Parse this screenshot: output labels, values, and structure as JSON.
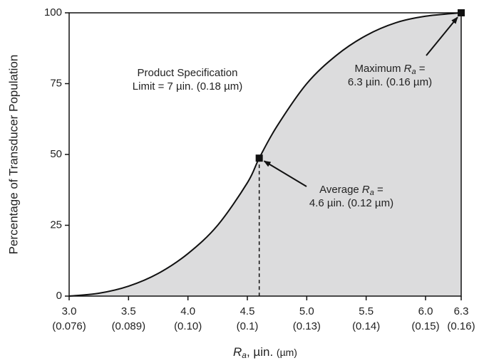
{
  "chart_data": {
    "type": "area",
    "x_label": {
      "symbol": "R",
      "subscript": "a",
      "unit": ", µin. ",
      "unit2": "(µm)"
    },
    "y_label": "Percentage of Transducer Population",
    "x": [
      3.0,
      3.25,
      3.5,
      3.75,
      4.0,
      4.25,
      4.5,
      4.6,
      4.75,
      5.0,
      5.25,
      5.5,
      5.75,
      6.0,
      6.3
    ],
    "values": [
      0,
      1,
      3.5,
      8,
      15,
      25,
      40,
      48.7,
      60,
      75,
      85,
      92,
      96.5,
      98.8,
      100
    ],
    "color": "#dcdcdd",
    "line_color": "#111111",
    "xlim": [
      3.0,
      6.3
    ],
    "ylim": [
      0,
      100
    ],
    "xticks": [
      {
        "value": 3,
        "label": "3.0",
        "sublabel": "(0.076)"
      },
      {
        "value": 3.5,
        "label": "3.5",
        "sublabel": "(0.089)"
      },
      {
        "value": 4,
        "label": "4.0",
        "sublabel": "(0.10)"
      },
      {
        "value": 4.5,
        "label": "4.5",
        "sublabel": "(0.1)"
      },
      {
        "value": 5,
        "label": "5.0",
        "sublabel": "(0.13)"
      },
      {
        "value": 5.5,
        "label": "5.5",
        "sublabel": "(0.14)"
      },
      {
        "value": 6,
        "label": "6.0",
        "sublabel": "(0.15)"
      },
      {
        "value": 6.3,
        "label": "6.3",
        "sublabel": "(0.16)"
      }
    ],
    "yticks": [
      0,
      25,
      50,
      75,
      100
    ],
    "markers": [
      {
        "x": 4.6,
        "y": 48.7,
        "prefix": "Average ",
        "symbol": "R",
        "subscript": "a",
        "suffix": " =",
        "line2": "4.6 µin. (0.12 µm)"
      },
      {
        "x": 6.3,
        "y": 100,
        "prefix": "Maximum ",
        "symbol": "R",
        "subscript": "a",
        "suffix": " =",
        "line2": "6.3 µin. (0.16 µm)"
      }
    ],
    "annotation": {
      "line1": "Product Specification",
      "line2": "Limit = 7 µin. (0.18 µm)"
    }
  }
}
